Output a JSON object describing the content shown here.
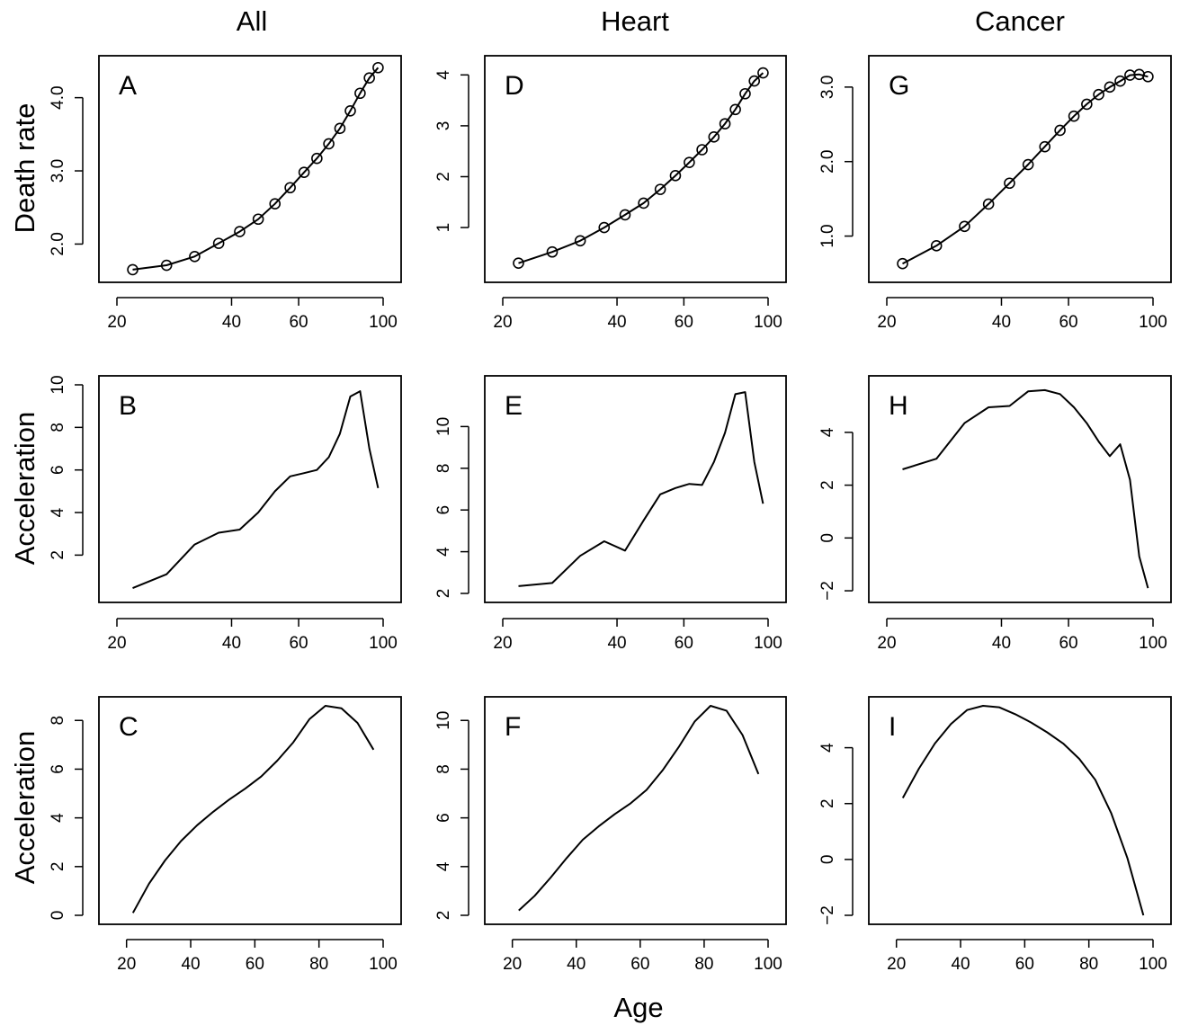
{
  "figure": {
    "columns": [
      "All",
      "Heart",
      "Cancer"
    ],
    "row_labels": [
      "Death rate",
      "Acceleration",
      "Acceleration"
    ],
    "xlabel": "Age"
  },
  "chart_data": [
    {
      "panel": "A",
      "type": "line",
      "markers": true,
      "x_scale": "log",
      "xlim": [
        20,
        100
      ],
      "xticks": [
        20,
        40,
        60,
        100
      ],
      "ylim": [
        1.6,
        4.45
      ],
      "yticks": [
        2.0,
        3.0,
        4.0
      ],
      "ytick_labels": [
        "2.0",
        "3.0",
        "4.0"
      ],
      "x": [
        22,
        27,
        32,
        37,
        42,
        47,
        52,
        57,
        62,
        67,
        72,
        77,
        82,
        87,
        92,
        97
      ],
      "y": [
        1.65,
        1.71,
        1.83,
        2.01,
        2.17,
        2.34,
        2.55,
        2.77,
        2.98,
        3.17,
        3.37,
        3.58,
        3.82,
        4.06,
        4.27,
        4.41
      ]
    },
    {
      "panel": "D",
      "type": "line",
      "markers": true,
      "x_scale": "log",
      "xlim": [
        20,
        100
      ],
      "xticks": [
        20,
        40,
        60,
        100
      ],
      "ylim": [
        0.1,
        4.2
      ],
      "yticks": [
        1,
        2,
        3,
        4
      ],
      "ytick_labels": [
        "1",
        "2",
        "3",
        "4"
      ],
      "x": [
        22,
        27,
        32,
        37,
        42,
        47,
        52,
        57,
        62,
        67,
        72,
        77,
        82,
        87,
        92,
        97
      ],
      "y": [
        0.3,
        0.52,
        0.74,
        1.0,
        1.25,
        1.48,
        1.75,
        2.02,
        2.28,
        2.53,
        2.78,
        3.04,
        3.32,
        3.63,
        3.88,
        4.04
      ]
    },
    {
      "panel": "G",
      "type": "line",
      "markers": true,
      "x_scale": "log",
      "xlim": [
        20,
        100
      ],
      "xticks": [
        20,
        40,
        60,
        100
      ],
      "ylim": [
        0.5,
        3.3
      ],
      "yticks": [
        1.0,
        2.0,
        3.0
      ],
      "ytick_labels": [
        "1.0",
        "2.0",
        "3.0"
      ],
      "x": [
        22,
        27,
        32,
        37,
        42,
        47,
        52,
        57,
        62,
        67,
        72,
        77,
        82,
        87,
        92,
        97
      ],
      "y": [
        0.63,
        0.87,
        1.13,
        1.43,
        1.71,
        1.96,
        2.2,
        2.42,
        2.61,
        2.77,
        2.9,
        3.0,
        3.08,
        3.16,
        3.17,
        3.14
      ]
    },
    {
      "panel": "B",
      "type": "line",
      "x_scale": "log",
      "xlim": [
        20,
        100
      ],
      "xticks": [
        20,
        40,
        60,
        100
      ],
      "ylim": [
        0.2,
        10
      ],
      "yticks": [
        2,
        4,
        6,
        8,
        10
      ],
      "ytick_labels": [
        "2",
        "4",
        "6",
        "8",
        "10"
      ],
      "x": [
        22,
        27,
        32,
        37,
        42,
        47,
        52,
        57,
        62,
        67,
        72,
        77,
        82,
        87,
        92,
        97
      ],
      "y": [
        0.45,
        1.1,
        2.5,
        3.05,
        3.2,
        4.0,
        5.0,
        5.7,
        5.85,
        6.0,
        6.6,
        7.7,
        9.45,
        9.7,
        7.0,
        5.15
      ]
    },
    {
      "panel": "E",
      "type": "line",
      "x_scale": "log",
      "xlim": [
        20,
        100
      ],
      "xticks": [
        20,
        40,
        60,
        100
      ],
      "ylim": [
        2,
        12
      ],
      "yticks": [
        2,
        4,
        6,
        8,
        10
      ],
      "ytick_labels": [
        "2",
        "4",
        "6",
        "8",
        "10"
      ],
      "x": [
        22,
        27,
        32,
        37,
        42,
        47,
        52,
        57,
        62,
        67,
        72,
        77,
        82,
        87,
        92,
        97
      ],
      "y": [
        2.35,
        2.5,
        3.8,
        4.5,
        4.05,
        5.5,
        6.75,
        7.05,
        7.25,
        7.2,
        8.3,
        9.7,
        11.55,
        11.65,
        8.3,
        6.3
      ]
    },
    {
      "panel": "H",
      "type": "line",
      "x_scale": "log",
      "xlim": [
        20,
        100
      ],
      "xticks": [
        20,
        40,
        60,
        100
      ],
      "ylim": [
        -2.1,
        5.8
      ],
      "yticks": [
        -2,
        0,
        2,
        4
      ],
      "ytick_labels": [
        "−2",
        "0",
        "2",
        "4"
      ],
      "x": [
        22,
        27,
        32,
        37,
        42,
        47,
        52,
        57,
        62,
        67,
        72,
        77,
        82,
        87,
        92,
        97
      ],
      "y": [
        2.6,
        3.0,
        4.35,
        4.95,
        5.0,
        5.55,
        5.6,
        5.45,
        4.95,
        4.35,
        3.65,
        3.1,
        3.55,
        2.2,
        -0.7,
        -1.9
      ]
    },
    {
      "panel": "C",
      "type": "line",
      "xlim": [
        17,
        100
      ],
      "xticks": [
        20,
        40,
        60,
        80,
        100
      ],
      "ylim": [
        0,
        8.6
      ],
      "yticks": [
        0,
        2,
        4,
        6,
        8
      ],
      "ytick_labels": [
        "0",
        "2",
        "4",
        "6",
        "8"
      ],
      "x": [
        22,
        27,
        32,
        37,
        42,
        47,
        52,
        57,
        62,
        67,
        72,
        77,
        82,
        87,
        92,
        97
      ],
      "y": [
        0.1,
        1.3,
        2.25,
        3.05,
        3.7,
        4.25,
        4.75,
        5.2,
        5.7,
        6.35,
        7.1,
        8.05,
        8.6,
        8.5,
        7.9,
        6.8
      ]
    },
    {
      "panel": "F",
      "type": "line",
      "xlim": [
        17,
        100
      ],
      "xticks": [
        20,
        40,
        60,
        80,
        100
      ],
      "ylim": [
        2,
        10.6
      ],
      "yticks": [
        2,
        4,
        6,
        8,
        10
      ],
      "ytick_labels": [
        "2",
        "4",
        "6",
        "8",
        "10"
      ],
      "x": [
        22,
        27,
        32,
        37,
        42,
        47,
        52,
        57,
        62,
        67,
        72,
        77,
        82,
        87,
        92,
        97
      ],
      "y": [
        2.2,
        2.8,
        3.55,
        4.35,
        5.1,
        5.65,
        6.15,
        6.6,
        7.15,
        7.95,
        8.9,
        9.95,
        10.6,
        10.4,
        9.4,
        7.8
      ]
    },
    {
      "panel": "I",
      "type": "line",
      "xlim": [
        17,
        100
      ],
      "xticks": [
        20,
        40,
        60,
        80,
        100
      ],
      "ylim": [
        -2,
        5.5
      ],
      "yticks": [
        -2,
        0,
        2,
        4
      ],
      "ytick_labels": [
        "−2",
        "0",
        "2",
        "4"
      ],
      "x": [
        22,
        27,
        32,
        37,
        42,
        47,
        52,
        57,
        62,
        67,
        72,
        77,
        82,
        87,
        92,
        97
      ],
      "y": [
        2.2,
        3.25,
        4.15,
        4.85,
        5.35,
        5.5,
        5.45,
        5.2,
        4.9,
        4.55,
        4.15,
        3.6,
        2.85,
        1.65,
        0.05,
        -2.0
      ]
    }
  ]
}
